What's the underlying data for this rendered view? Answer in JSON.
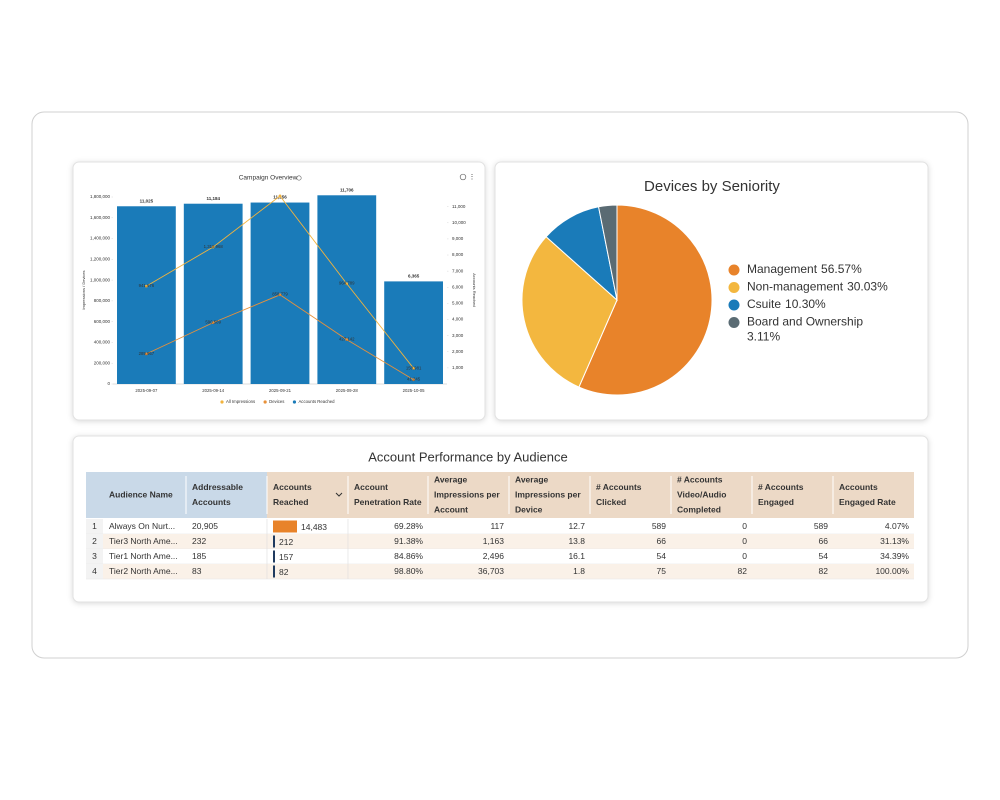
{
  "chart_data": [
    {
      "type": "combo",
      "title": "Campaign Overview",
      "categories": [
        "2025-09-07",
        "2025-09-14",
        "2025-09-21",
        "2025-09-28",
        "2025-10-05"
      ],
      "y_label": "Impressions / Devices",
      "y2_label": "Accounts Reached",
      "ylim": [
        0,
        1800000
      ],
      "yticks": [
        0,
        {
          "value": 200000,
          "label": "200,000"
        },
        {
          "value": 400000,
          "label": "400,000"
        },
        {
          "value": 600000,
          "label": "600,000"
        },
        {
          "value": 800000,
          "label": "800,000"
        },
        {
          "value": 1000000,
          "label": "1,000,000"
        },
        {
          "value": 1200000,
          "label": "1,200,000"
        },
        {
          "value": 1400000,
          "label": "1,400,000"
        },
        {
          "value": 1600000,
          "label": "1,600,000"
        },
        {
          "value": 1800000,
          "label": "1,800,000"
        }
      ],
      "y2lim": [
        0,
        11600
      ],
      "y2ticks": [
        {
          "value": 1000,
          "label": "1,000"
        },
        {
          "value": 2000,
          "label": "2,000"
        },
        {
          "value": 3000,
          "label": "3,000"
        },
        {
          "value": 4000,
          "label": "4,000"
        },
        {
          "value": 5000,
          "label": "5,000"
        },
        {
          "value": 6000,
          "label": "6,000"
        },
        {
          "value": 7000,
          "label": "7,000"
        },
        {
          "value": 8000,
          "label": "8,000"
        },
        {
          "value": 9000,
          "label": "9,000"
        },
        {
          "value": 10000,
          "label": "10,000"
        },
        {
          "value": 11000,
          "label": "11,000"
        }
      ],
      "series": [
        {
          "name": "All Impressions",
          "type": "line",
          "color": "#f2b33d",
          "values": [
            941676,
            1318968,
            1810000,
            964789,
            150981
          ],
          "value_labels": [
            "941,676",
            "1,318,968",
            null,
            "964,789",
            "150,981"
          ]
        },
        {
          "name": "Devices",
          "type": "line",
          "color": "#e8913a",
          "values": [
            289957,
            590589,
            858779,
            427142,
            41245
          ],
          "value_labels": [
            "289,957",
            "590,589",
            "858,779",
            "427,142",
            "41,245"
          ]
        },
        {
          "name": "Accounts Reached",
          "type": "bar",
          "axis": "y2",
          "color": "#1a7bb9",
          "values": [
            11025,
            11184,
            11256,
            11706,
            6365
          ],
          "value_labels": [
            "11,025",
            "11,184",
            "11,256",
            "11,706",
            "6,365"
          ]
        }
      ]
    },
    {
      "type": "pie",
      "title": "Devices by Seniority",
      "categories": [
        "Management",
        "Non-management",
        "Csuite",
        "Board and Ownership"
      ],
      "values": [
        56.57,
        30.03,
        10.3,
        3.11
      ],
      "value_labels": [
        "56.57%",
        "30.03%",
        "10.30%",
        "3.11%"
      ],
      "colors": [
        "#e8832a",
        "#f3b73f",
        "#1a7bb9",
        "#5a6b73"
      ]
    }
  ],
  "table": {
    "title": "Account Performance by Audience",
    "columns": [
      [
        "Audience Name"
      ],
      [
        "Addressable",
        "Accounts"
      ],
      [
        "Accounts",
        "Reached"
      ],
      [
        "Account",
        "Penetration Rate"
      ],
      [
        "Average",
        "Impressions per",
        "Account"
      ],
      [
        "Average",
        "Impressions per",
        "Device"
      ],
      [
        "# Accounts",
        "Clicked"
      ],
      [
        "# Accounts",
        "Video/Audio",
        "Completed"
      ],
      [
        "# Accounts",
        "Engaged"
      ],
      [
        "Accounts",
        "Engaged Rate"
      ]
    ],
    "rows": [
      [
        "1",
        "Always On Nurt...",
        "20,905",
        {
          "value": 14483,
          "label": "14,483"
        },
        "69.28%",
        "117",
        "12.7",
        "589",
        "0",
        "589",
        "4.07%"
      ],
      [
        "2",
        "Tier3 North Ame...",
        "232",
        {
          "value": 212,
          "label": "212"
        },
        "91.38%",
        "1,163",
        "13.8",
        "66",
        "0",
        "66",
        "31.13%"
      ],
      [
        "3",
        "Tier1 North Ame...",
        "185",
        {
          "value": 157,
          "label": "157"
        },
        "84.86%",
        "2,496",
        "16.1",
        "54",
        "0",
        "54",
        "34.39%"
      ],
      [
        "4",
        "Tier2 North Ame...",
        "83",
        {
          "value": 82,
          "label": "82"
        },
        "98.80%",
        "36,703",
        "1.8",
        "75",
        "82",
        "82",
        "100.00%"
      ]
    ],
    "bar_color": "#1f3a5f",
    "bar_max_color": "#e8832a"
  }
}
